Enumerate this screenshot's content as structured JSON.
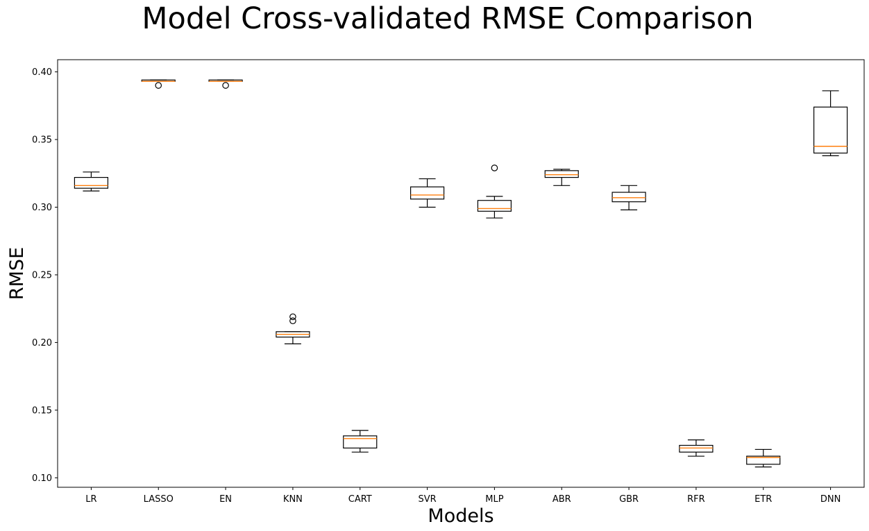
{
  "chart_data": {
    "type": "box",
    "title": "Model Cross-validated RMSE Comparison",
    "xlabel": "Models",
    "ylabel": "RMSE",
    "ylim": [
      0.093,
      0.409
    ],
    "yticks": [
      0.1,
      0.15,
      0.2,
      0.25,
      0.3,
      0.35,
      0.4
    ],
    "ytick_labels": [
      "0.10",
      "0.15",
      "0.20",
      "0.25",
      "0.30",
      "0.35",
      "0.40"
    ],
    "grid": false,
    "colors": {
      "box": "#000000",
      "median": "#ff7f0e",
      "background": "#ffffff"
    },
    "categories": [
      "LR",
      "LASSO",
      "EN",
      "KNN",
      "CART",
      "SVR",
      "MLP",
      "ABR",
      "GBR",
      "RFR",
      "ETR",
      "DNN"
    ],
    "boxes": [
      {
        "name": "LR",
        "whisker_low": 0.312,
        "q1": 0.314,
        "median": 0.316,
        "q3": 0.322,
        "whisker_high": 0.326,
        "outliers": []
      },
      {
        "name": "LASSO",
        "whisker_low": 0.393,
        "q1": 0.393,
        "median": 0.393,
        "q3": 0.394,
        "whisker_high": 0.394,
        "outliers": [
          0.39
        ]
      },
      {
        "name": "EN",
        "whisker_low": 0.393,
        "q1": 0.393,
        "median": 0.393,
        "q3": 0.394,
        "whisker_high": 0.394,
        "outliers": [
          0.39
        ]
      },
      {
        "name": "KNN",
        "whisker_low": 0.199,
        "q1": 0.204,
        "median": 0.206,
        "q3": 0.208,
        "whisker_high": 0.208,
        "outliers": [
          0.219,
          0.216
        ]
      },
      {
        "name": "CART",
        "whisker_low": 0.119,
        "q1": 0.122,
        "median": 0.129,
        "q3": 0.131,
        "whisker_high": 0.135,
        "outliers": []
      },
      {
        "name": "SVR",
        "whisker_low": 0.3,
        "q1": 0.306,
        "median": 0.309,
        "q3": 0.315,
        "whisker_high": 0.321,
        "outliers": []
      },
      {
        "name": "MLP",
        "whisker_low": 0.292,
        "q1": 0.297,
        "median": 0.299,
        "q3": 0.305,
        "whisker_high": 0.308,
        "outliers": [
          0.329
        ]
      },
      {
        "name": "ABR",
        "whisker_low": 0.316,
        "q1": 0.322,
        "median": 0.324,
        "q3": 0.327,
        "whisker_high": 0.328,
        "outliers": []
      },
      {
        "name": "GBR",
        "whisker_low": 0.298,
        "q1": 0.304,
        "median": 0.307,
        "q3": 0.311,
        "whisker_high": 0.316,
        "outliers": []
      },
      {
        "name": "RFR",
        "whisker_low": 0.116,
        "q1": 0.119,
        "median": 0.122,
        "q3": 0.124,
        "whisker_high": 0.128,
        "outliers": []
      },
      {
        "name": "ETR",
        "whisker_low": 0.108,
        "q1": 0.11,
        "median": 0.115,
        "q3": 0.116,
        "whisker_high": 0.121,
        "outliers": []
      },
      {
        "name": "DNN",
        "whisker_low": 0.338,
        "q1": 0.34,
        "median": 0.345,
        "q3": 0.374,
        "whisker_high": 0.386,
        "outliers": []
      }
    ]
  }
}
